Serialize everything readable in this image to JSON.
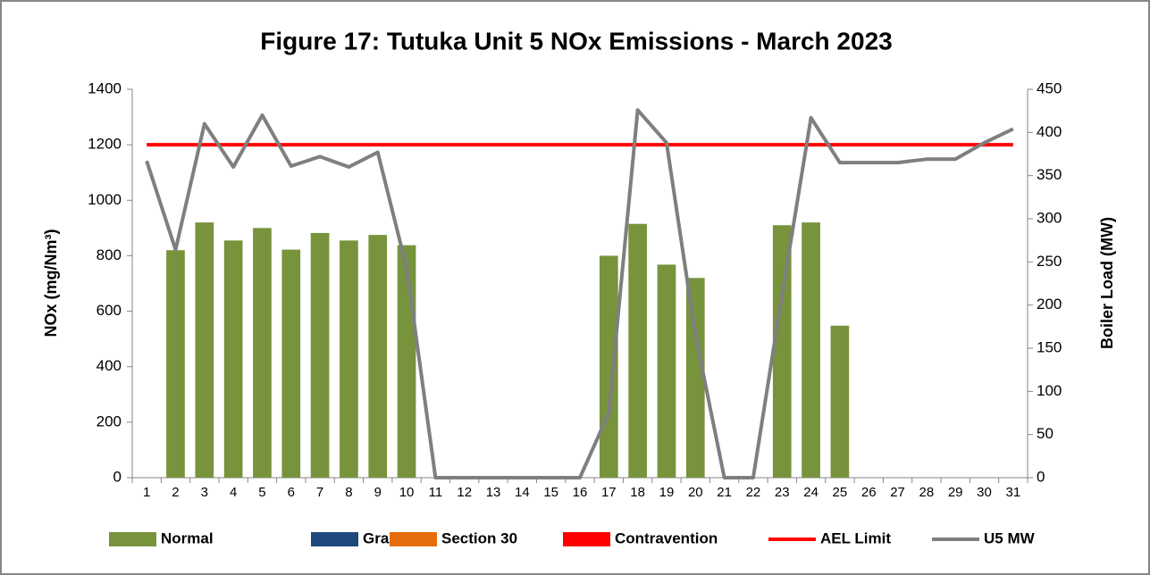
{
  "chart_data": {
    "type": "bar",
    "title": "Figure 17: Tutuka Unit 5 NOx Emissions -  March 2023",
    "y_label": "NOx (mg/Nm³)",
    "y2_label": "Boiler Load (MW)",
    "categories": [
      1,
      2,
      3,
      4,
      5,
      6,
      7,
      8,
      9,
      10,
      11,
      12,
      13,
      14,
      15,
      16,
      17,
      18,
      19,
      20,
      21,
      22,
      23,
      24,
      25,
      26,
      27,
      28,
      29,
      30,
      31
    ],
    "ylim": [
      0,
      1400
    ],
    "yticks": [
      0,
      200,
      400,
      600,
      800,
      1000,
      1200,
      1400
    ],
    "y2lim": [
      0,
      450
    ],
    "y2ticks": [
      0,
      50,
      100,
      150,
      200,
      250,
      300,
      350,
      400,
      450
    ],
    "grid": false,
    "legend": "bottom",
    "series": [
      {
        "name": "Normal",
        "type": "bar",
        "color": "#77933c",
        "values": [
          null,
          820,
          920,
          855,
          900,
          822,
          882,
          855,
          875,
          838,
          null,
          null,
          null,
          null,
          null,
          null,
          800,
          915,
          768,
          720,
          null,
          null,
          910,
          920,
          548,
          null,
          null,
          null,
          null,
          null,
          null
        ]
      },
      {
        "name": "Grace",
        "type": "bar",
        "color": "#1f497d",
        "values": [
          null,
          null,
          null,
          null,
          null,
          null,
          null,
          null,
          null,
          null,
          null,
          null,
          null,
          null,
          null,
          null,
          null,
          null,
          null,
          null,
          null,
          null,
          null,
          null,
          null,
          null,
          null,
          null,
          null,
          null,
          null
        ]
      },
      {
        "name": "Section 30",
        "type": "bar",
        "color": "#e46c0a",
        "values": [
          null,
          null,
          null,
          null,
          null,
          null,
          null,
          null,
          null,
          null,
          null,
          null,
          null,
          null,
          null,
          null,
          null,
          null,
          null,
          null,
          null,
          null,
          null,
          null,
          null,
          null,
          null,
          null,
          null,
          null,
          null
        ]
      },
      {
        "name": "Contravention",
        "type": "bar",
        "color": "#ff0000",
        "values": [
          null,
          null,
          null,
          null,
          null,
          null,
          null,
          null,
          null,
          null,
          null,
          null,
          null,
          null,
          null,
          null,
          null,
          null,
          null,
          null,
          null,
          null,
          null,
          null,
          null,
          null,
          null,
          null,
          null,
          null,
          null
        ]
      },
      {
        "name": "AEL Limit",
        "type": "line",
        "color": "#ff0000",
        "values": [
          1200,
          1200,
          1200,
          1200,
          1200,
          1200,
          1200,
          1200,
          1200,
          1200,
          1200,
          1200,
          1200,
          1200,
          1200,
          1200,
          1200,
          1200,
          1200,
          1200,
          1200,
          1200,
          1200,
          1200,
          1200,
          1200,
          1200,
          1200,
          1200,
          1200,
          1200
        ]
      },
      {
        "name": "U5 MW",
        "type": "line",
        "axis": "y2",
        "color": "#7f7f7f",
        "values": [
          367,
          264,
          410,
          360,
          420,
          361,
          372,
          360,
          377,
          243,
          0,
          0,
          0,
          0,
          0,
          0,
          75,
          426,
          388,
          165,
          0,
          0,
          212,
          417,
          365,
          365,
          365,
          369,
          369,
          388,
          404
        ]
      }
    ]
  }
}
